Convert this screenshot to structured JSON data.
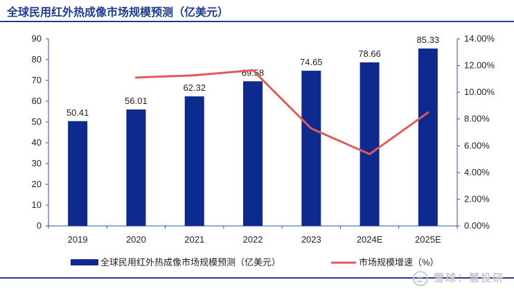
{
  "header": {
    "title": "全球民用红外热成像市场规模预测（亿美元）"
  },
  "watermark": {
    "text": "雪球：慧投研",
    "icon": "snowball-logo-icon"
  },
  "chart_data": {
    "type": "bar+line",
    "categories": [
      "2019",
      "2020",
      "2021",
      "2022",
      "2023",
      "2024E",
      "2025E"
    ],
    "series": [
      {
        "name": "全球民用红外热成像市场规模预测（亿美元）",
        "type": "bar",
        "axis": "left",
        "color": "#0f2a8f",
        "values": [
          50.41,
          56.01,
          62.32,
          69.58,
          74.65,
          78.66,
          85.33
        ],
        "labels": [
          "50.41",
          "56.01",
          "62.32",
          "69.58",
          "74.65",
          "78.66",
          "85.33"
        ]
      },
      {
        "name": "市场规模增速（%）",
        "type": "line",
        "axis": "right",
        "color": "#e05a5a",
        "values": [
          null,
          11.1,
          11.27,
          11.65,
          7.29,
          5.37,
          8.48
        ]
      }
    ],
    "y_left": {
      "range": [
        0,
        90
      ],
      "ticks": [
        "0",
        "10",
        "20",
        "30",
        "40",
        "50",
        "60",
        "70",
        "80",
        "90"
      ]
    },
    "y_right": {
      "range": [
        0,
        14
      ],
      "ticks": [
        "0.00%",
        "2.00%",
        "4.00%",
        "6.00%",
        "8.00%",
        "10.00%",
        "12.00%",
        "14.00%"
      ]
    },
    "grid": false,
    "legend_position": "bottom",
    "axis_color": "#2e4fa3"
  }
}
